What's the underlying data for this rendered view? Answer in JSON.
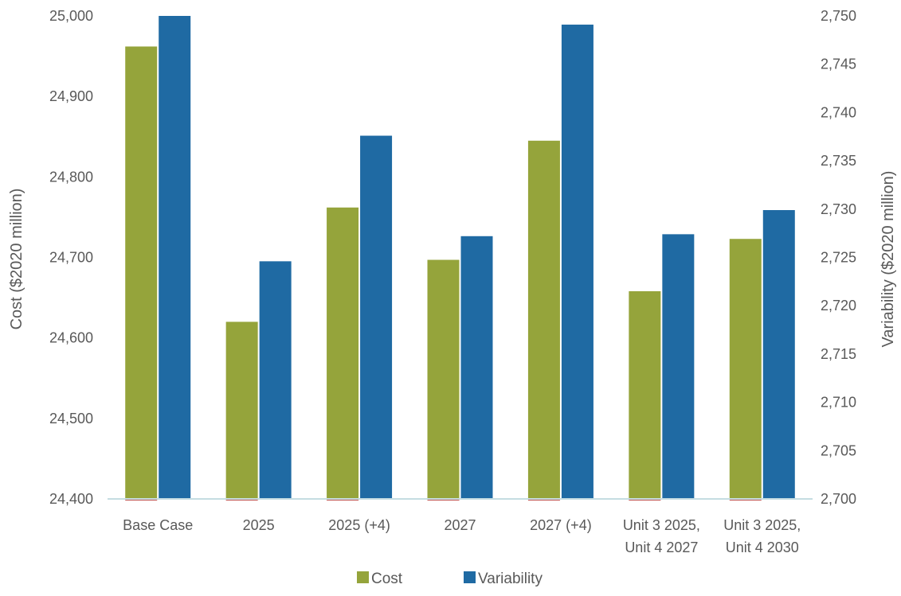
{
  "chart_data": {
    "type": "bar",
    "categories": [
      [
        "Base Case"
      ],
      [
        "2025"
      ],
      [
        "2025 (+4)"
      ],
      [
        "2027"
      ],
      [
        "2027 (+4)"
      ],
      [
        "Unit 3 2025,",
        "Unit 4 2027"
      ],
      [
        "Unit 3 2025,",
        "Unit 4 2030"
      ]
    ],
    "series": [
      {
        "name": "Cost",
        "axis": "left",
        "color": "#95a43b",
        "values": [
          24962,
          24620,
          24762,
          24697,
          24845,
          24658,
          24723
        ]
      },
      {
        "name": "Variability",
        "axis": "right",
        "color": "#1f6aa3",
        "values": [
          2750,
          2724.6,
          2737.6,
          2727.2,
          2749.1,
          2727.4,
          2729.9
        ]
      }
    ],
    "y_left": {
      "label": "Cost  ($2020 million)",
      "range": [
        24400,
        25000
      ],
      "ticks": [
        "24,400",
        "24,500",
        "24,600",
        "24,700",
        "24,800",
        "24,900",
        "25,000"
      ]
    },
    "y_right": {
      "label": "Variability ($2020 million)",
      "range": [
        2700,
        2750
      ],
      "ticks": [
        "2,700",
        "2,705",
        "2,710",
        "2,715",
        "2,720",
        "2,725",
        "2,730",
        "2,735",
        "2,740",
        "2,745",
        "2,750"
      ]
    },
    "legend": {
      "position": "bottom-center",
      "entries": [
        "Cost",
        "Variability"
      ]
    },
    "grid": false,
    "baseline_color": "#c5dde2"
  }
}
